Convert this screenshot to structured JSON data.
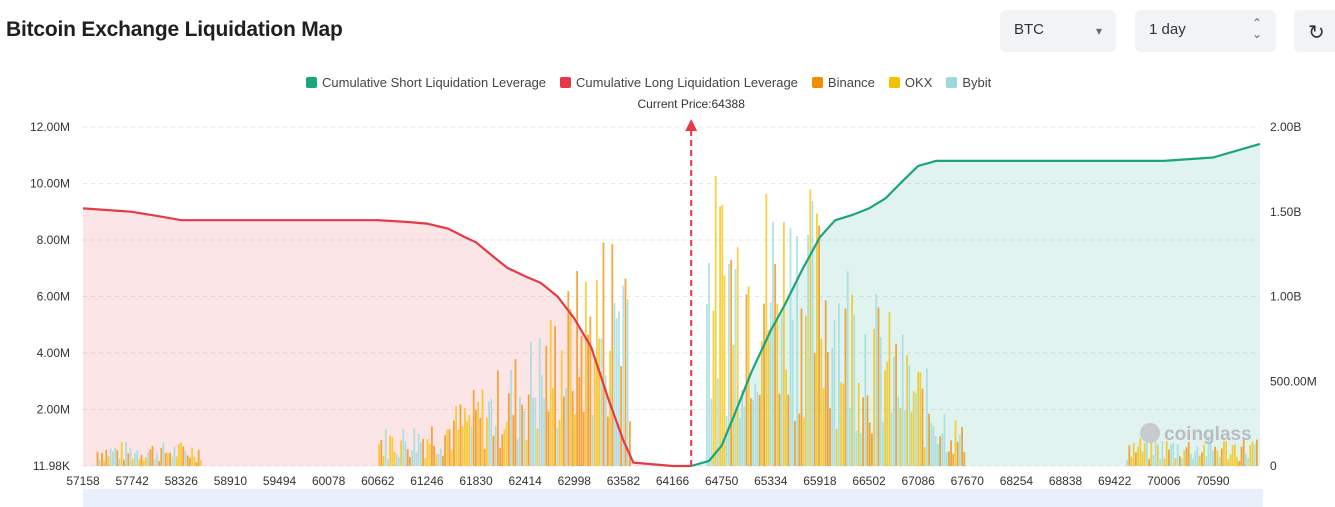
{
  "header": {
    "title": "Bitcoin Exchange Liquidation Map",
    "asset_select": {
      "value": "BTC",
      "caret_icon": "caret-down-icon"
    },
    "range_select": {
      "value": "1 day",
      "caret_icon": "updown-caret-icon"
    },
    "refresh_icon": "refresh-icon"
  },
  "legend": [
    {
      "label": "Cumulative Short Liquidation Leverage",
      "color": "#1aa57f"
    },
    {
      "label": "Cumulative Long Liquidation Leverage",
      "color": "#e63946"
    },
    {
      "label": "Binance",
      "color": "#f08c00"
    },
    {
      "label": "OKX",
      "color": "#f5c000"
    },
    {
      "label": "Bybit",
      "color": "#9ad9dc"
    }
  ],
  "watermark": "coinglass",
  "chart_data": {
    "type": "bar",
    "current_price_label": "Current Price:64388",
    "current_price": 64388,
    "x_ticks": [
      "57158",
      "57742",
      "58326",
      "58910",
      "59494",
      "60078",
      "60662",
      "61246",
      "61830",
      "62414",
      "62998",
      "63582",
      "64166",
      "64750",
      "65334",
      "65918",
      "66502",
      "67086",
      "67670",
      "68254",
      "68838",
      "69422",
      "70006",
      "70590"
    ],
    "x_range": [
      57158,
      71150
    ],
    "left_axis": {
      "ticks": [
        "11.98K",
        "2.00M",
        "4.00M",
        "6.00M",
        "8.00M",
        "10.00M",
        "12.00M"
      ],
      "ylim": [
        0,
        12000000
      ]
    },
    "right_axis": {
      "ticks": [
        "0",
        "500.00M",
        "1.00B",
        "1.50B",
        "2.00B"
      ],
      "ylim": [
        0,
        2000000000
      ]
    },
    "grid": "horizontal-dashed",
    "legend_position": "top-center",
    "long_cumulative": {
      "name": "Cumulative Long Liquidation Leverage",
      "x": [
        57158,
        57742,
        58100,
        58326,
        58910,
        59494,
        60078,
        60662,
        61000,
        61246,
        61500,
        61700,
        61830,
        62000,
        62200,
        62414,
        62600,
        62800,
        62998,
        63200,
        63400,
        63582,
        63700,
        64166,
        64388
      ],
      "y": [
        1520000000,
        1500000000,
        1470000000,
        1450000000,
        1450000000,
        1450000000,
        1450000000,
        1450000000,
        1440000000,
        1430000000,
        1400000000,
        1350000000,
        1320000000,
        1250000000,
        1170000000,
        1120000000,
        1080000000,
        1000000000,
        870000000,
        700000000,
        400000000,
        150000000,
        20000000,
        0,
        0
      ]
    },
    "short_cumulative": {
      "name": "Cumulative Short Liquidation Leverage",
      "x": [
        64388,
        64600,
        64750,
        64900,
        65100,
        65334,
        65500,
        65700,
        65918,
        66100,
        66300,
        66502,
        66700,
        66900,
        67086,
        67300,
        67670,
        68254,
        68838,
        69422,
        70006,
        70590,
        71150
      ],
      "y": [
        0,
        30000000,
        120000000,
        300000000,
        550000000,
        800000000,
        950000000,
        1150000000,
        1350000000,
        1450000000,
        1480000000,
        1520000000,
        1580000000,
        1680000000,
        1770000000,
        1800000000,
        1800000000,
        1800000000,
        1800000000,
        1800000000,
        1800000000,
        1820000000,
        1900000000
      ]
    }
  }
}
